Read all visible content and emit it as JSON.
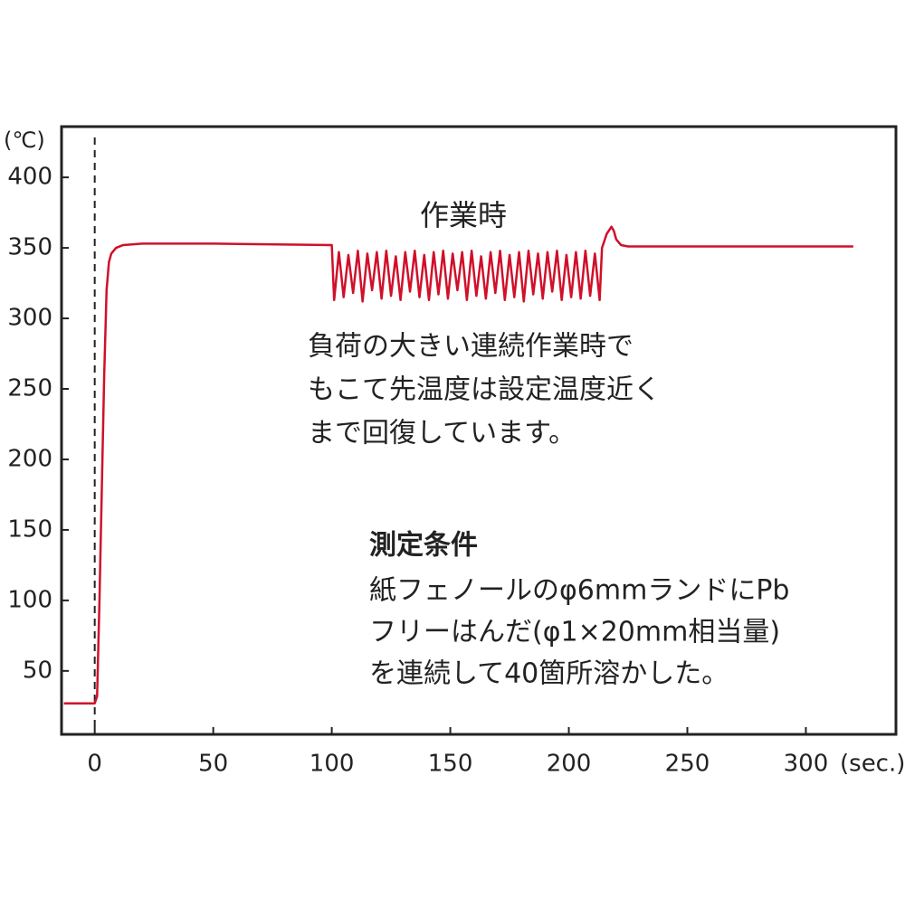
{
  "chart_data": {
    "type": "line",
    "x": [
      -13,
      0,
      1,
      2,
      3,
      4,
      5,
      6,
      7,
      9,
      12,
      20,
      50,
      100,
      101,
      103,
      105,
      107,
      109,
      111,
      113,
      115,
      117,
      119,
      121,
      123,
      125,
      127,
      129,
      131,
      133,
      135,
      137,
      139,
      141,
      143,
      145,
      147,
      149,
      151,
      153,
      155,
      157,
      159,
      161,
      163,
      165,
      167,
      169,
      171,
      173,
      175,
      177,
      179,
      181,
      183,
      185,
      187,
      189,
      191,
      193,
      195,
      197,
      199,
      201,
      203,
      205,
      207,
      209,
      211,
      213,
      214,
      216,
      218,
      219,
      220,
      222,
      225,
      250,
      300,
      320
    ],
    "series": [
      {
        "color": "#d0102a",
        "values": [
          27,
          27,
          32,
          100,
          180,
          260,
          320,
          340,
          346,
          350,
          352,
          353,
          353,
          352,
          313,
          347,
          315,
          345,
          318,
          348,
          312,
          346,
          320,
          347,
          314,
          348,
          316,
          344,
          313,
          347,
          319,
          348,
          315,
          345,
          313,
          347,
          317,
          348,
          314,
          346,
          320,
          347,
          313,
          348,
          316,
          344,
          314,
          347,
          318,
          348,
          313,
          345,
          315,
          347,
          312,
          348,
          317,
          346,
          314,
          347,
          319,
          348,
          313,
          345,
          315,
          347,
          314,
          348,
          316,
          346,
          313,
          350,
          360,
          365,
          362,
          356,
          352,
          351,
          351,
          351,
          351
        ]
      }
    ],
    "xlim": [
      -14,
      338
    ],
    "ylim": [
      5,
      436
    ],
    "xticks": [
      0,
      50,
      100,
      150,
      200,
      250,
      300
    ],
    "yticks": [
      50,
      100,
      150,
      200,
      250,
      300,
      350,
      400
    ],
    "x_unit": "(sec.)",
    "y_unit": "(℃)",
    "vline": 0,
    "annotations": {
      "label": "作業時",
      "note": [
        "負荷の大きい連続作業時で",
        "もこて先温度は設定温度近く",
        "まで回復しています。"
      ],
      "conditions_title": "測定条件",
      "conditions": [
        "紙フェノールのφ6mmランドにPb",
        "フリーはんだ(φ1×20mm相当量)",
        "を連続して40箇所溶かした。"
      ]
    }
  }
}
